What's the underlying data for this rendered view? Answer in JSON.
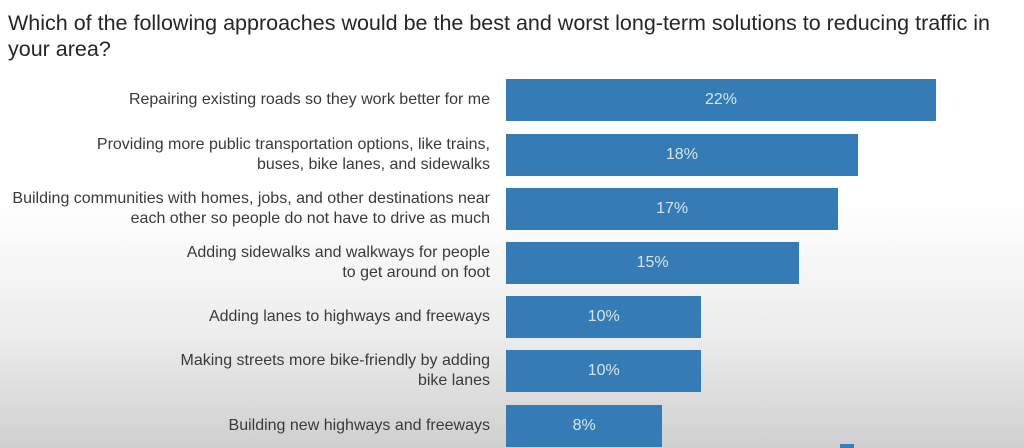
{
  "chart_data": {
    "type": "bar",
    "orientation": "horizontal",
    "title": "Which of the following approaches would be the best and worst long-term solutions to reducing traffic in your area?",
    "categories": [
      "Repairing existing roads so they work better for me",
      "Providing more public transportation options, like trains, buses, bike lanes, and sidewalks",
      "Building communities with homes, jobs, and other destinations near each other so people do not have to drive as much",
      "Adding sidewalks and walkways for people to get around on foot",
      "Adding lanes to highways and freeways",
      "Making streets more bike-friendly by adding bike lanes",
      "Building new highways and freeways"
    ],
    "values": [
      22,
      18,
      17,
      15,
      10,
      10,
      8
    ],
    "data_labels": [
      "22%",
      "18%",
      "17%",
      "15%",
      "10%",
      "10%",
      "8%"
    ],
    "bar_color": "#357cb6",
    "label_color": "#d6e4f1",
    "grid": false
  }
}
